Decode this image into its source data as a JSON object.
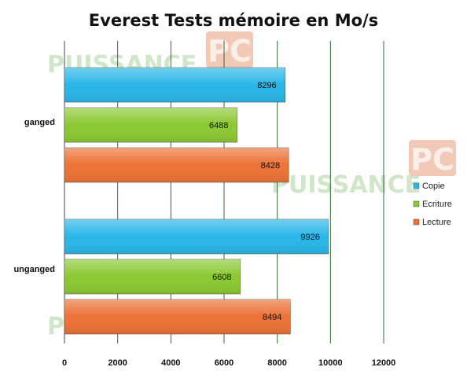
{
  "watermark": {
    "text": "PUISSANCE",
    "badge": "PC",
    "text_color": "#cfe6c8",
    "badge_color": "#f2c9b6"
  },
  "chart_data": {
    "type": "bar",
    "orientation": "horizontal",
    "title": "Everest Tests mémoire en Mo/s",
    "categories": [
      "ganged",
      "unganged"
    ],
    "series": [
      {
        "name": "Copie",
        "color": "#29b6e8",
        "values": [
          8296,
          9926
        ]
      },
      {
        "name": "Ecriture",
        "color": "#8bc832",
        "values": [
          6488,
          6608
        ]
      },
      {
        "name": "Lecture",
        "color": "#ec7236",
        "values": [
          8428,
          8494
        ]
      }
    ],
    "xlim": [
      0,
      12000
    ],
    "xticks": [
      0,
      2000,
      4000,
      6000,
      8000,
      10000,
      12000
    ],
    "xtick_labels": [
      "0",
      "2000",
      "4000",
      "6000",
      "8000",
      "10000",
      "12000"
    ],
    "grid": "vertical",
    "legend_position": "right"
  }
}
